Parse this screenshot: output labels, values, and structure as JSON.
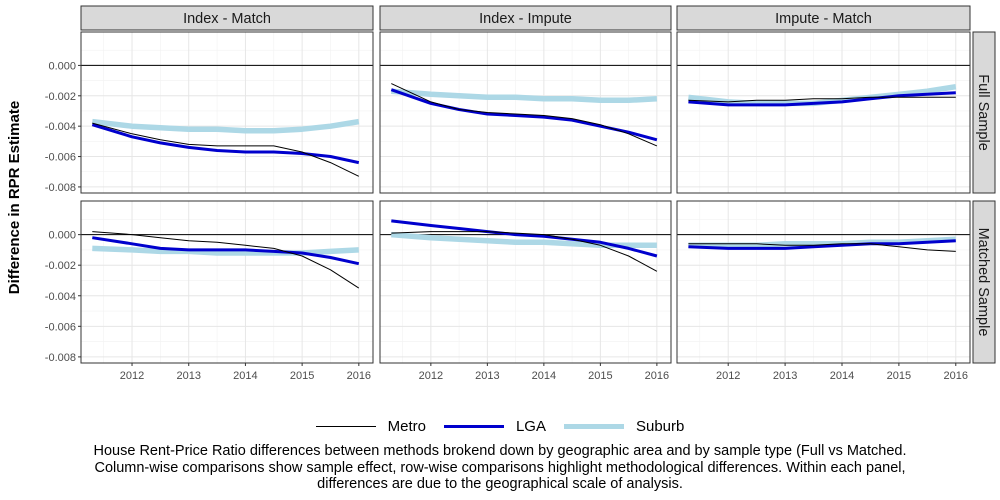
{
  "chart_data": {
    "type": "line",
    "layout": "facet-grid",
    "ylabel": "Difference in RPR Estimate",
    "xlabel": "",
    "x_ticks": [
      2012,
      2013,
      2014,
      2015,
      2016
    ],
    "y_ticks": [
      0.0,
      -0.002,
      -0.004,
      -0.006,
      -0.008
    ],
    "y_tick_labels": [
      "0.000",
      "-0.002",
      "-0.004",
      "-0.006",
      "-0.008"
    ],
    "xlim": [
      2011.1,
      2016.25
    ],
    "ylim": [
      -0.0084,
      0.0022
    ],
    "grid": true,
    "reference_line_y": 0,
    "columns": [
      "Index - Match",
      "Index - Impute",
      "Impute - Match"
    ],
    "rows": [
      "Full Sample",
      "Matched Sample"
    ],
    "legend_position": "bottom",
    "series_styles": [
      {
        "name": "Metro",
        "color": "#000000",
        "width": 1
      },
      {
        "name": "LGA",
        "color": "#0000CD",
        "width": 3
      },
      {
        "name": "Suburb",
        "color": "#ADD8E6",
        "width": 5.5
      }
    ],
    "panels": [
      {
        "row": 0,
        "col": 0,
        "x": [
          2011.3,
          2012,
          2012.5,
          2013,
          2013.5,
          2014,
          2014.5,
          2015,
          2015.5,
          2016
        ],
        "series": [
          {
            "name": "Metro",
            "values": [
              -0.0038,
              -0.0045,
              -0.0049,
              -0.0052,
              -0.0053,
              -0.0053,
              -0.0053,
              -0.0057,
              -0.0064,
              -0.0073
            ]
          },
          {
            "name": "LGA",
            "values": [
              -0.0039,
              -0.0047,
              -0.0051,
              -0.0054,
              -0.0056,
              -0.0057,
              -0.0057,
              -0.0058,
              -0.006,
              -0.0064
            ]
          },
          {
            "name": "Suburb",
            "values": [
              -0.0037,
              -0.004,
              -0.0041,
              -0.0042,
              -0.0042,
              -0.0043,
              -0.0043,
              -0.0042,
              -0.004,
              -0.0037
            ]
          }
        ]
      },
      {
        "row": 0,
        "col": 1,
        "x": [
          2011.3,
          2012,
          2012.5,
          2013,
          2013.5,
          2014,
          2014.5,
          2015,
          2015.5,
          2016
        ],
        "series": [
          {
            "name": "Metro",
            "values": [
              -0.0012,
              -0.0024,
              -0.0029,
              -0.0031,
              -0.0032,
              -0.0033,
              -0.0035,
              -0.0039,
              -0.0045,
              -0.0053
            ]
          },
          {
            "name": "LGA",
            "values": [
              -0.0016,
              -0.0025,
              -0.0029,
              -0.0032,
              -0.0033,
              -0.0034,
              -0.0036,
              -0.004,
              -0.0044,
              -0.0049
            ]
          },
          {
            "name": "Suburb",
            "values": [
              -0.0017,
              -0.0019,
              -0.002,
              -0.0021,
              -0.0021,
              -0.0022,
              -0.0022,
              -0.0023,
              -0.0023,
              -0.0022
            ]
          }
        ]
      },
      {
        "row": 0,
        "col": 2,
        "x": [
          2011.3,
          2012,
          2012.5,
          2013,
          2013.5,
          2014,
          2014.5,
          2015,
          2015.5,
          2016
        ],
        "series": [
          {
            "name": "Metro",
            "values": [
              -0.0023,
              -0.0024,
              -0.0023,
              -0.0023,
              -0.0022,
              -0.0022,
              -0.0021,
              -0.0021,
              -0.0021,
              -0.0021
            ]
          },
          {
            "name": "LGA",
            "values": [
              -0.0024,
              -0.0026,
              -0.0026,
              -0.0026,
              -0.0025,
              -0.0024,
              -0.0022,
              -0.002,
              -0.0019,
              -0.0018
            ]
          },
          {
            "name": "Suburb",
            "values": [
              -0.0021,
              -0.0024,
              -0.0025,
              -0.0025,
              -0.0025,
              -0.0023,
              -0.0021,
              -0.0019,
              -0.0017,
              -0.0014
            ]
          }
        ]
      },
      {
        "row": 1,
        "col": 0,
        "x": [
          2011.3,
          2012,
          2012.5,
          2013,
          2013.5,
          2014,
          2014.5,
          2015,
          2015.5,
          2016
        ],
        "series": [
          {
            "name": "Metro",
            "values": [
              0.0002,
              0.0,
              -0.0002,
              -0.0004,
              -0.0005,
              -0.0007,
              -0.0009,
              -0.0014,
              -0.0023,
              -0.0035
            ]
          },
          {
            "name": "LGA",
            "values": [
              -0.0002,
              -0.0006,
              -0.0009,
              -0.001,
              -0.001,
              -0.001,
              -0.0011,
              -0.0012,
              -0.0015,
              -0.0019
            ]
          },
          {
            "name": "Suburb",
            "values": [
              -0.0009,
              -0.001,
              -0.0011,
              -0.0011,
              -0.0012,
              -0.0012,
              -0.0012,
              -0.0012,
              -0.0011,
              -0.001
            ]
          }
        ]
      },
      {
        "row": 1,
        "col": 1,
        "x": [
          2011.3,
          2012,
          2012.5,
          2013,
          2013.5,
          2014,
          2014.5,
          2015,
          2015.5,
          2016
        ],
        "series": [
          {
            "name": "Metro",
            "values": [
              0.0001,
              0.0002,
              0.0002,
              0.0002,
              0.0001,
              0.0,
              -0.0003,
              -0.0007,
              -0.0014,
              -0.0024
            ]
          },
          {
            "name": "LGA",
            "values": [
              0.0009,
              0.0006,
              0.0004,
              0.0002,
              0.0,
              -0.0001,
              -0.0003,
              -0.0005,
              -0.0009,
              -0.0014
            ]
          },
          {
            "name": "Suburb",
            "values": [
              0.0,
              -0.0002,
              -0.0003,
              -0.0004,
              -0.0005,
              -0.0005,
              -0.0006,
              -0.0007,
              -0.0007,
              -0.0007
            ]
          }
        ]
      },
      {
        "row": 1,
        "col": 2,
        "x": [
          2011.3,
          2012,
          2012.5,
          2013,
          2013.5,
          2014,
          2014.5,
          2015,
          2015.5,
          2016
        ],
        "series": [
          {
            "name": "Metro",
            "values": [
              -0.0006,
              -0.0006,
              -0.0006,
              -0.0007,
              -0.0007,
              -0.0006,
              -0.0006,
              -0.0008,
              -0.001,
              -0.0011
            ]
          },
          {
            "name": "LGA",
            "values": [
              -0.0008,
              -0.0009,
              -0.0009,
              -0.0009,
              -0.0008,
              -0.0007,
              -0.0006,
              -0.0006,
              -0.0005,
              -0.0004
            ]
          },
          {
            "name": "Suburb",
            "values": [
              -0.0007,
              -0.0007,
              -0.0007,
              -0.0006,
              -0.0006,
              -0.0006,
              -0.0005,
              -0.0005,
              -0.0004,
              -0.0003
            ]
          }
        ]
      }
    ]
  },
  "legend": {
    "items": [
      {
        "label": "Metro",
        "color": "#000000"
      },
      {
        "label": "LGA",
        "color": "#0000CD"
      },
      {
        "label": "Suburb",
        "color": "#ADD8E6"
      }
    ]
  },
  "caption": {
    "line1": "House Rent-Price Ratio differences between methods brokend down by geographic area and by sample type (Full vs Matched.",
    "line2": "Column-wise comparisons show sample effect, row-wise comparisons highlight methodological differences.  Within each panel,",
    "line3": "differences are due to the geographical scale of analysis."
  }
}
